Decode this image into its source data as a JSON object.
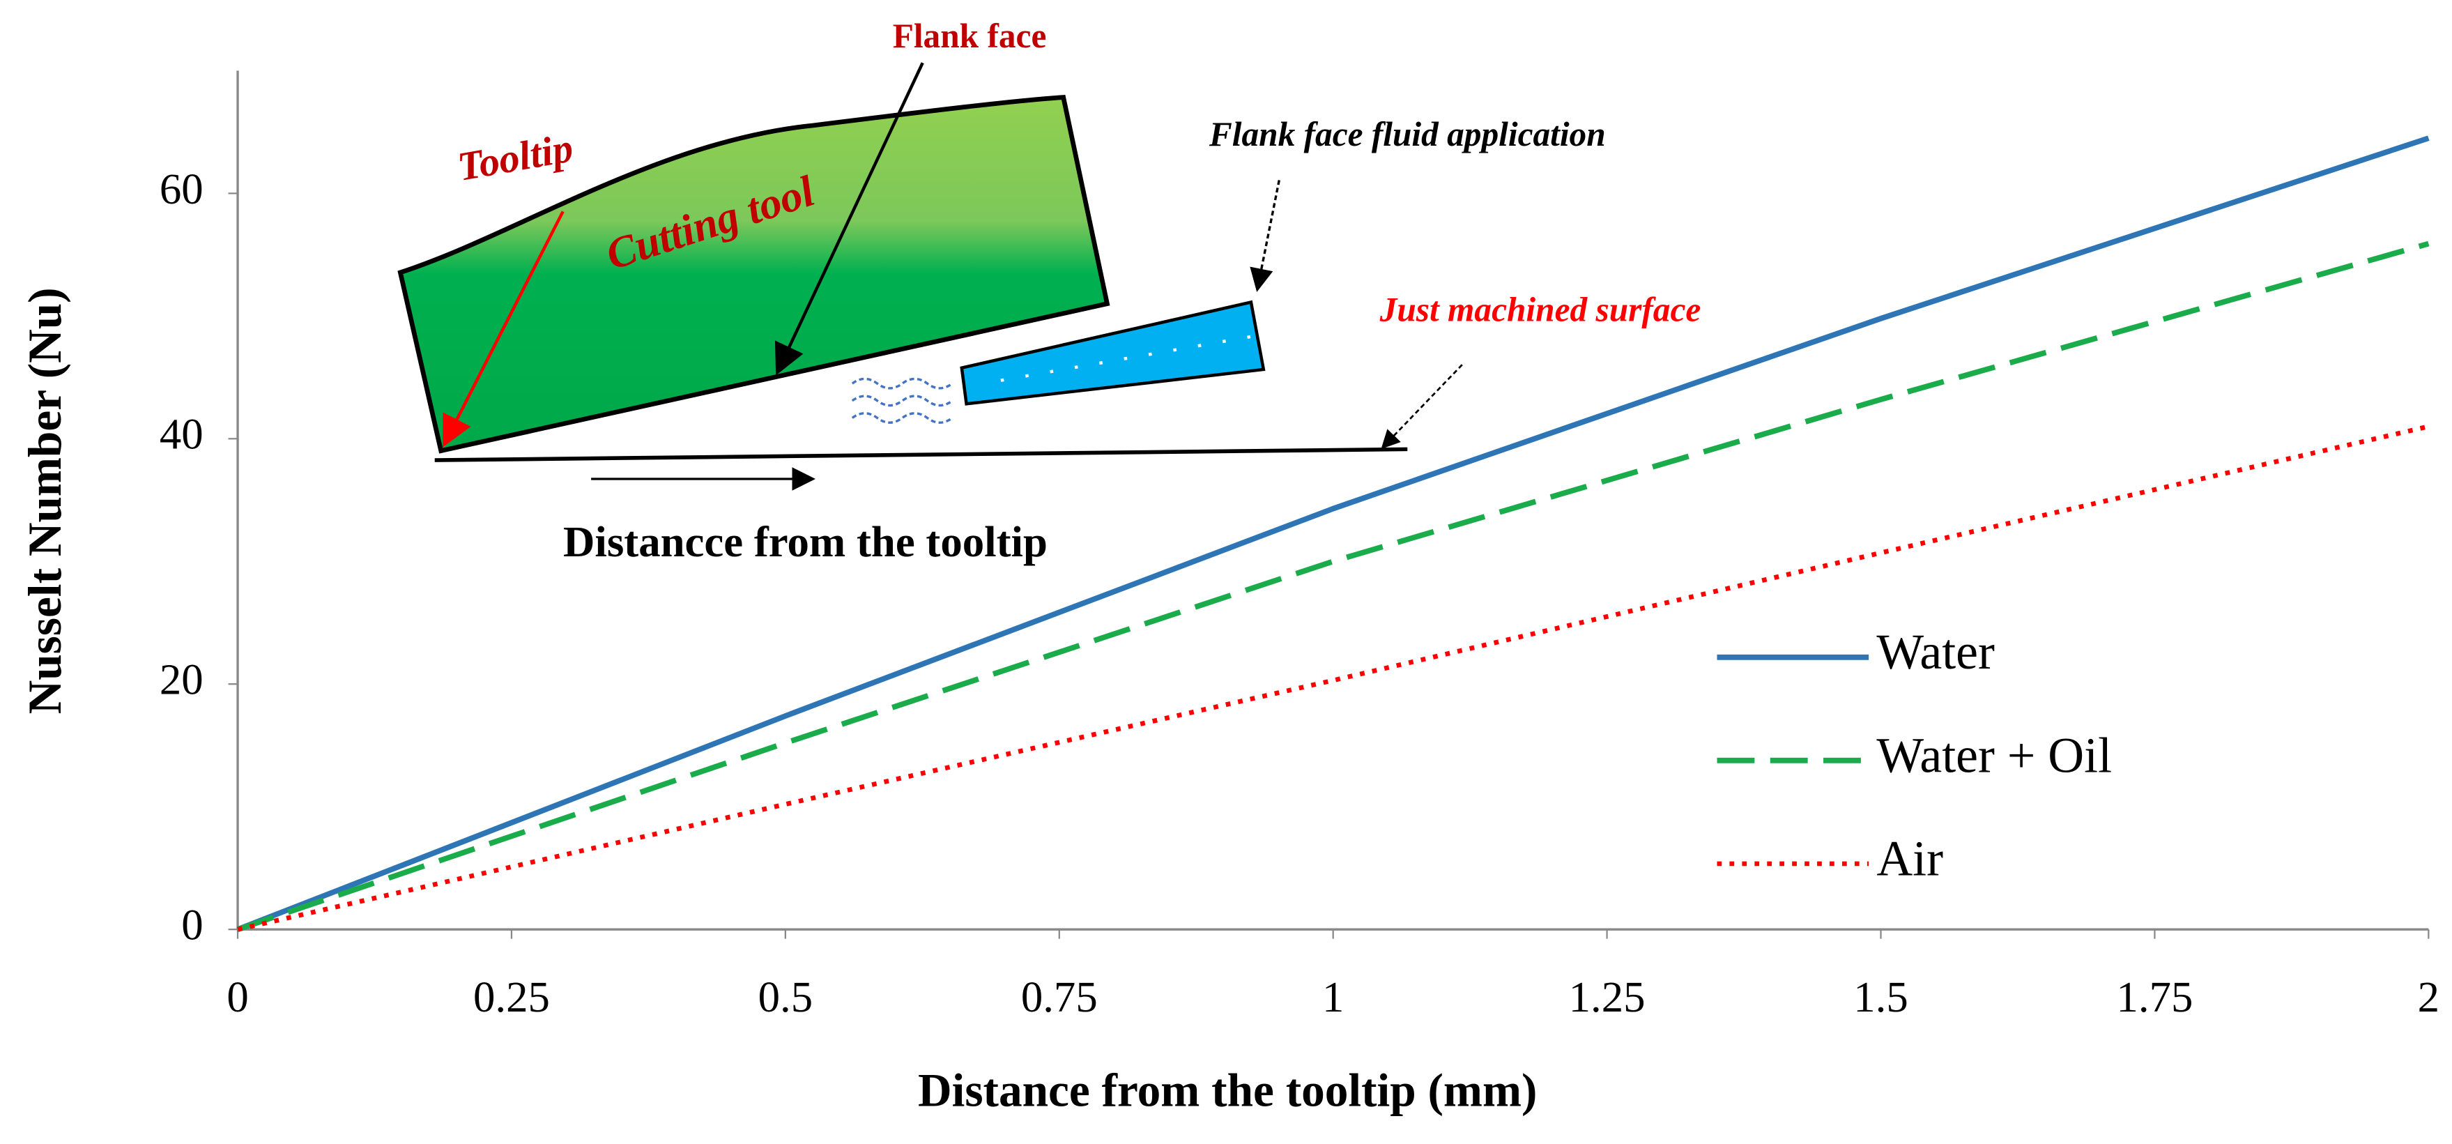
{
  "chart_data": {
    "type": "line",
    "xlabel": "Distance from the tooltip (mm)",
    "ylabel": "Nusselt Number (Nu)",
    "x": [
      0,
      0.5,
      1,
      1.5,
      2
    ],
    "series": [
      {
        "name": "Water",
        "color": "#2e75b6",
        "style": "solid",
        "values": [
          0,
          17.4,
          34.3,
          49.8,
          64.5
        ]
      },
      {
        "name": "Water + Oil",
        "color": "#1aab4a",
        "style": "dashed",
        "values": [
          0,
          15.2,
          30,
          43.2,
          55.9
        ]
      },
      {
        "name": "Air",
        "color": "#ff0000",
        "style": "dotted",
        "values": [
          0,
          10.2,
          20.3,
          30.7,
          41
        ]
      }
    ],
    "xlim": [
      0,
      2
    ],
    "xticks": [
      0,
      0.25,
      0.5,
      0.75,
      1,
      1.25,
      1.5,
      1.75,
      2
    ],
    "ylim": [
      0,
      70
    ],
    "yticks": [
      0,
      20,
      40,
      60
    ],
    "grid": false,
    "legend": "lower right",
    "annotations": [
      {
        "text": "Flank face",
        "color": "#c00000"
      },
      {
        "text": "Tooltip",
        "color": "#c00000"
      },
      {
        "text": "Cutting tool",
        "color": "#c00000"
      },
      {
        "text": "Flank face fluid application",
        "color": "#000000"
      },
      {
        "text": "Just machined surface",
        "color": "#ff0000"
      },
      {
        "text": "Distancce from the tooltip",
        "color": "#000000"
      }
    ]
  }
}
